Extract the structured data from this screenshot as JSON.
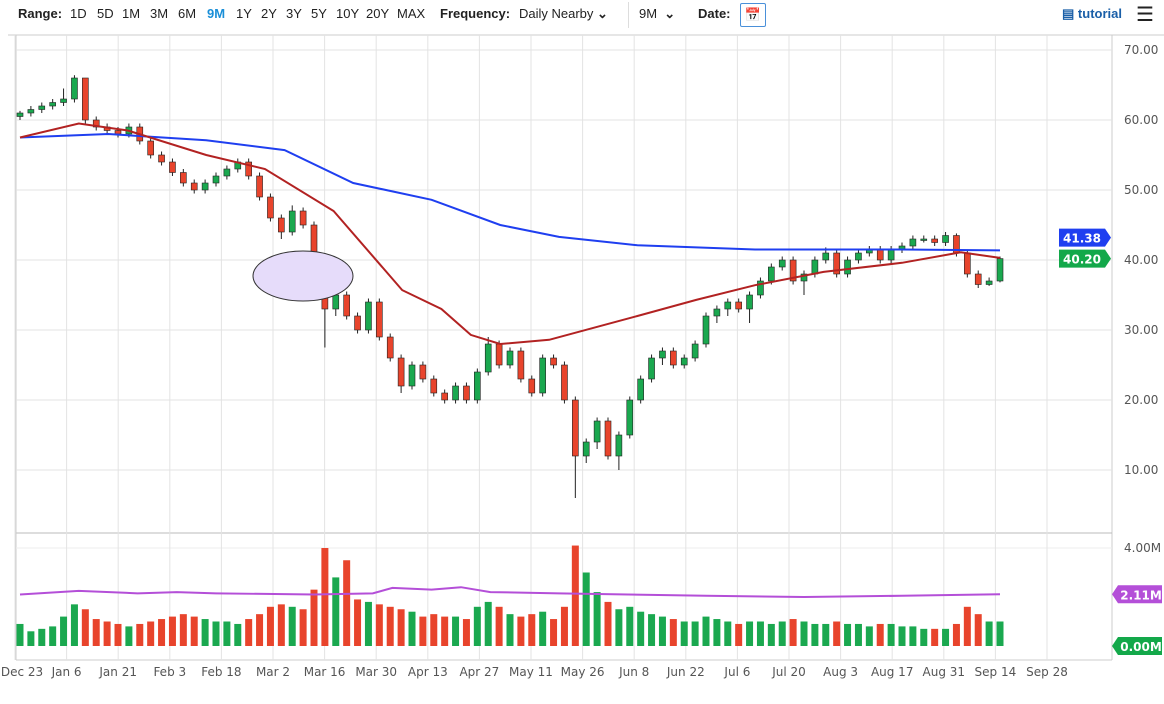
{
  "toolbar": {
    "range_label": "Range:",
    "ranges": [
      "1D",
      "5D",
      "1M",
      "3M",
      "6M",
      "9M",
      "1Y",
      "2Y",
      "3Y",
      "5Y",
      "10Y",
      "20Y",
      "MAX"
    ],
    "selected_range": "9M",
    "frequency_label": "Frequency:",
    "frequency_value": "Daily Nearby",
    "period_value": "9M",
    "date_label": "Date:",
    "calendar_icon": "calendar-icon",
    "tutorial_label": "tutorial",
    "menu_icon": "hamburger-menu-icon"
  },
  "chart_data": {
    "type": "candlestick",
    "price_axis": {
      "ticks": [
        "70.00",
        "60.00",
        "50.00",
        "40.00",
        "30.00",
        "20.00",
        "10.00"
      ],
      "ylim": [
        3,
        73
      ]
    },
    "volume_axis": {
      "ticks": [
        "4.00M"
      ],
      "ylim": [
        0,
        4.2
      ]
    },
    "x_ticks": [
      "Dec 23",
      "Jan 6",
      "Jan 21",
      "Feb 3",
      "Feb 18",
      "Mar 2",
      "Mar 16",
      "Mar 30",
      "Apr 13",
      "Apr 27",
      "May 11",
      "May 26",
      "Jun 8",
      "Jun 22",
      "Jul 6",
      "Jul 20",
      "Aug 3",
      "Aug 17",
      "Aug 31",
      "Sep 14",
      "Sep 28"
    ],
    "last_price": "40.20",
    "ma200_last": "41.38",
    "volume_avg_last": "2.11M",
    "volume_last_label": "0.00M",
    "colors": {
      "up": "#1aa84f",
      "down": "#e8442c",
      "ma50": "#b22222",
      "ma200": "#1f3ff0",
      "volume_avg": "#b44fd8",
      "last_price_bg": "#13a84a",
      "ma200_bg": "#1f3ff0",
      "volume_avg_bg": "#b44fd8"
    },
    "candles": [
      [
        60.5,
        61.3,
        60,
        61,
        0.9
      ],
      [
        61,
        62,
        60.5,
        61.5,
        0.6
      ],
      [
        61.5,
        62.5,
        61,
        62,
        0.7
      ],
      [
        62,
        63,
        61.5,
        62.5,
        0.8
      ],
      [
        62.5,
        64.5,
        62,
        63,
        1.2
      ],
      [
        63,
        66.4,
        62.5,
        66,
        1.7
      ],
      [
        66,
        66,
        59.5,
        60,
        1.5
      ],
      [
        60,
        60.5,
        58.5,
        59,
        1.1
      ],
      [
        59,
        59.5,
        58,
        58.5,
        1.0
      ],
      [
        58.5,
        59,
        57.5,
        58,
        0.9
      ],
      [
        58,
        59.5,
        57.5,
        59,
        0.8
      ],
      [
        59,
        59.5,
        56.5,
        57,
        0.9
      ],
      [
        57,
        57.5,
        54.5,
        55,
        1.0
      ],
      [
        55,
        55.5,
        53.5,
        54,
        1.1
      ],
      [
        54,
        54.5,
        52,
        52.5,
        1.2
      ],
      [
        52.5,
        53,
        50.5,
        51,
        1.3
      ],
      [
        51,
        51.5,
        49.5,
        50,
        1.2
      ],
      [
        50,
        51.5,
        49.5,
        51,
        1.1
      ],
      [
        51,
        52.5,
        50.5,
        52,
        1.0
      ],
      [
        52,
        53.5,
        51.5,
        53,
        1.0
      ],
      [
        53,
        54.5,
        52.5,
        54,
        0.9
      ],
      [
        54,
        54.5,
        51.5,
        52,
        1.1
      ],
      [
        52,
        52.5,
        48.5,
        49,
        1.3
      ],
      [
        49,
        49.5,
        45.5,
        46,
        1.6
      ],
      [
        46,
        46.5,
        43,
        44,
        1.7
      ],
      [
        44,
        47.8,
        43.5,
        47,
        1.6
      ],
      [
        47,
        47.5,
        44.5,
        45,
        1.5
      ],
      [
        45,
        45.5,
        40.5,
        41,
        2.3
      ],
      [
        35,
        36,
        27.5,
        33,
        4.0
      ],
      [
        33,
        36,
        32,
        35,
        2.8
      ],
      [
        35,
        35.5,
        31.5,
        32,
        3.5
      ],
      [
        32,
        32.5,
        29.5,
        30,
        1.9
      ],
      [
        30,
        34.5,
        29.5,
        34,
        1.8
      ],
      [
        34,
        34.5,
        28.5,
        29,
        1.7
      ],
      [
        29,
        29.5,
        25.5,
        26,
        1.6
      ],
      [
        26,
        26.5,
        21,
        22,
        1.5
      ],
      [
        22,
        25.5,
        21.5,
        25,
        1.4
      ],
      [
        25,
        25.5,
        22.5,
        23,
        1.2
      ],
      [
        23,
        23.5,
        20.5,
        21,
        1.3
      ],
      [
        21,
        21.5,
        19.5,
        20,
        1.2
      ],
      [
        20,
        22.5,
        19.5,
        22,
        1.2
      ],
      [
        22,
        22.5,
        19.5,
        20,
        1.1
      ],
      [
        20,
        24.5,
        19.5,
        24,
        1.6
      ],
      [
        24,
        29,
        23.5,
        28,
        1.8
      ],
      [
        28,
        28.5,
        24.5,
        25,
        1.6
      ],
      [
        25,
        27.5,
        24.5,
        27,
        1.3
      ],
      [
        27,
        27.5,
        22.5,
        23,
        1.2
      ],
      [
        23,
        23.5,
        20.5,
        21,
        1.3
      ],
      [
        21,
        26.5,
        20.5,
        26,
        1.4
      ],
      [
        26,
        26.5,
        24.5,
        25,
        1.1
      ],
      [
        25,
        25.5,
        19.5,
        20,
        1.6
      ],
      [
        20,
        20.5,
        6,
        12,
        4.1
      ],
      [
        12,
        14.5,
        11,
        14,
        3.0
      ],
      [
        14,
        17.5,
        13,
        17,
        2.2
      ],
      [
        17,
        17.5,
        11.5,
        12,
        1.8
      ],
      [
        12,
        15.5,
        10,
        15,
        1.5
      ],
      [
        15,
        20.5,
        14.5,
        20,
        1.6
      ],
      [
        20,
        23.5,
        19.5,
        23,
        1.4
      ],
      [
        23,
        26.5,
        22.5,
        26,
        1.3
      ],
      [
        26,
        27.5,
        25,
        27,
        1.2
      ],
      [
        27,
        27.5,
        24.5,
        25,
        1.1
      ],
      [
        25,
        26.5,
        24.5,
        26,
        1.0
      ],
      [
        26,
        28.5,
        25.5,
        28,
        1.0
      ],
      [
        28,
        32.5,
        27.5,
        32,
        1.2
      ],
      [
        32,
        33.5,
        31,
        33,
        1.1
      ],
      [
        33,
        34.5,
        32,
        34,
        1.0
      ],
      [
        34,
        34.5,
        32.5,
        33,
        0.9
      ],
      [
        33,
        35.5,
        31,
        35,
        1.0
      ],
      [
        35,
        37.5,
        34.5,
        37,
        1.0
      ],
      [
        37,
        39.5,
        36.5,
        39,
        0.9
      ],
      [
        39,
        40.5,
        38.5,
        40,
        1.0
      ],
      [
        40,
        40.5,
        36.5,
        37,
        1.1
      ],
      [
        37,
        38.5,
        35,
        38,
        1.0
      ],
      [
        38,
        40.5,
        37.5,
        40,
        0.9
      ],
      [
        40,
        41.8,
        39.5,
        41,
        0.9
      ],
      [
        41,
        41.5,
        37.5,
        38,
        1.0
      ],
      [
        38,
        40.5,
        37.5,
        40,
        0.9
      ],
      [
        40,
        41.5,
        39.5,
        41,
        0.9
      ],
      [
        41,
        42,
        40.5,
        41.5,
        0.8
      ],
      [
        41.5,
        42,
        39.5,
        40,
        0.9
      ],
      [
        40,
        42,
        39.5,
        41.5,
        0.9
      ],
      [
        41.5,
        42.5,
        41,
        42,
        0.8
      ],
      [
        42,
        43.5,
        41.5,
        43,
        0.8
      ],
      [
        43,
        43.5,
        42.5,
        43,
        0.7
      ],
      [
        43,
        43.5,
        42,
        42.5,
        0.7
      ],
      [
        42.5,
        44,
        42,
        43.5,
        0.7
      ],
      [
        43.5,
        43.8,
        40.5,
        41,
        0.9
      ],
      [
        41,
        41.5,
        37.5,
        38,
        1.6
      ],
      [
        38,
        38.5,
        36,
        36.5,
        1.3
      ],
      [
        36.5,
        37.5,
        36.3,
        37,
        1.0
      ],
      [
        37,
        40.5,
        36.8,
        40.2,
        1.0
      ]
    ],
    "ma50": [
      [
        0,
        57.5
      ],
      [
        0.06,
        59.5
      ],
      [
        0.11,
        58.5
      ],
      [
        0.19,
        55
      ],
      [
        0.25,
        53
      ],
      [
        0.32,
        47
      ],
      [
        0.39,
        35.7
      ],
      [
        0.43,
        33
      ],
      [
        0.46,
        29.3
      ],
      [
        0.49,
        28
      ],
      [
        0.54,
        28.6
      ],
      [
        0.63,
        32
      ],
      [
        0.69,
        34.3
      ],
      [
        0.75,
        36.4
      ],
      [
        0.82,
        38.3
      ],
      [
        0.9,
        39.6
      ],
      [
        0.96,
        41.1
      ],
      [
        1,
        40.3
      ]
    ],
    "ma200": [
      [
        0,
        57.5
      ],
      [
        0.09,
        58
      ],
      [
        0.19,
        57.1
      ],
      [
        0.27,
        55.7
      ],
      [
        0.34,
        51
      ],
      [
        0.42,
        48.6
      ],
      [
        0.49,
        45
      ],
      [
        0.55,
        43.3
      ],
      [
        0.63,
        42.1
      ],
      [
        0.75,
        41.5
      ],
      [
        0.9,
        41.5
      ],
      [
        1,
        41.38
      ]
    ],
    "volume_avg": [
      [
        0,
        2.1
      ],
      [
        0.06,
        2.25
      ],
      [
        0.12,
        2.15
      ],
      [
        0.16,
        2.2
      ],
      [
        0.2,
        2.15
      ],
      [
        0.3,
        2.1
      ],
      [
        0.36,
        2.15
      ],
      [
        0.38,
        2.37
      ],
      [
        0.42,
        2.3
      ],
      [
        0.45,
        2.4
      ],
      [
        0.48,
        2.2
      ],
      [
        0.55,
        2.15
      ],
      [
        0.7,
        2.05
      ],
      [
        0.8,
        2.0
      ],
      [
        0.9,
        2.05
      ],
      [
        1,
        2.11
      ]
    ]
  }
}
